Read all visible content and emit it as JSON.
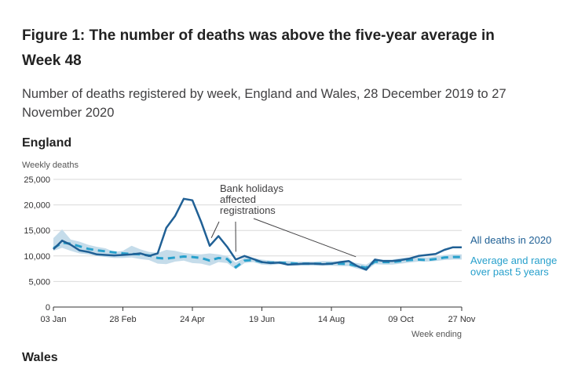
{
  "title": "Figure 1: The number of deaths was above the five-year average in Week 48",
  "subtitle": "Number of deaths registered by week, England and Wales, 28 December 2019 to 27 November 2020",
  "panel_titles": [
    "England",
    "Wales"
  ],
  "colors": {
    "all_deaths": "#206095",
    "average": "#27a0cc",
    "range": "#c5dcea",
    "grid": "#d9d9d9",
    "axis": "#333333"
  },
  "chart_data": {
    "type": "line",
    "title": "England",
    "ylabel": "Weekly deaths",
    "xlabel": "Week ending",
    "ylim": [
      0,
      25000
    ],
    "yticks": [
      0,
      5000,
      10000,
      15000,
      20000,
      25000
    ],
    "ytick_labels": [
      "0",
      "5,000",
      "10,000",
      "15,000",
      "20,000",
      "25,000"
    ],
    "xtick_labels": [
      "03 Jan",
      "28 Feb",
      "24 Apr",
      "19 Jun",
      "14 Aug",
      "09 Oct",
      "27 Nov"
    ],
    "xtick_weeks": [
      1,
      9,
      17,
      25,
      33,
      41,
      48
    ],
    "weeks": [
      1,
      2,
      3,
      4,
      5,
      6,
      7,
      8,
      9,
      10,
      11,
      12,
      13,
      14,
      15,
      16,
      17,
      18,
      19,
      20,
      21,
      22,
      23,
      24,
      25,
      26,
      27,
      28,
      29,
      30,
      31,
      32,
      33,
      34,
      35,
      36,
      37,
      38,
      39,
      40,
      41,
      42,
      43,
      44,
      45,
      46,
      47,
      48
    ],
    "series": [
      {
        "name": "All deaths in 2020",
        "style": "solid",
        "values": [
          11300,
          13000,
          12200,
          11100,
          10800,
          10300,
          10200,
          10100,
          10200,
          10300,
          10500,
          10000,
          10500,
          15500,
          17800,
          21200,
          20900,
          16700,
          12000,
          13900,
          11800,
          9300,
          10000,
          9400,
          8800,
          8600,
          8700,
          8300,
          8400,
          8500,
          8500,
          8400,
          8500,
          8800,
          9000,
          8000,
          7300,
          9300,
          9000,
          9000,
          9200,
          9500,
          10000,
          10200,
          10400,
          11200,
          11700,
          11700
        ]
      },
      {
        "name": "Average and range over past 5 years",
        "style": "dashed",
        "values": [
          11500,
          12600,
          12400,
          11900,
          11400,
          11100,
          10900,
          10700,
          10500,
          10400,
          10300,
          10100,
          9600,
          9500,
          9700,
          9900,
          9800,
          9600,
          9100,
          9600,
          9400,
          7800,
          9100,
          9200,
          8800,
          8700,
          8700,
          8600,
          8500,
          8500,
          8500,
          8500,
          8500,
          8500,
          8400,
          8000,
          7700,
          8900,
          8800,
          8800,
          9000,
          9200,
          9300,
          9200,
          9400,
          9700,
          9800,
          9800
        ],
        "range_min": [
          11000,
          11600,
          11000,
          10500,
          10300,
          10000,
          9800,
          9600,
          9600,
          9700,
          9400,
          9200,
          8500,
          8400,
          8900,
          9100,
          8600,
          8500,
          8100,
          8800,
          8600,
          7400,
          8600,
          8800,
          8300,
          8200,
          8400,
          8200,
          8100,
          8100,
          8100,
          8100,
          8100,
          8000,
          8000,
          7500,
          7100,
          8400,
          8300,
          8300,
          8500,
          8700,
          8900,
          8900,
          9000,
          9200,
          9300,
          9300
        ],
        "range_max": [
          13500,
          15200,
          13200,
          12800,
          12200,
          11800,
          11500,
          10800,
          11000,
          12000,
          11300,
          10800,
          10600,
          11200,
          11000,
          10600,
          10400,
          10300,
          10500,
          10300,
          10000,
          8700,
          9700,
          9600,
          9300,
          9100,
          9000,
          9000,
          8900,
          8900,
          8900,
          9000,
          9000,
          8900,
          8800,
          8600,
          8300,
          9400,
          9300,
          9300,
          9600,
          9700,
          9800,
          9700,
          9900,
          10200,
          10300,
          10300
        ]
      }
    ],
    "annotations": [
      {
        "text_lines": [
          "Bank holidays",
          "affected",
          "registrations"
        ],
        "points_to_weeks": [
          19,
          22,
          36
        ]
      }
    ],
    "legend": [
      {
        "lines": [
          "All deaths in 2020"
        ],
        "series": "all"
      },
      {
        "lines": [
          "Average and range",
          "over past 5 years"
        ],
        "series": "avg"
      }
    ],
    "legend_placement": "right, at line ends",
    "grid": true
  }
}
